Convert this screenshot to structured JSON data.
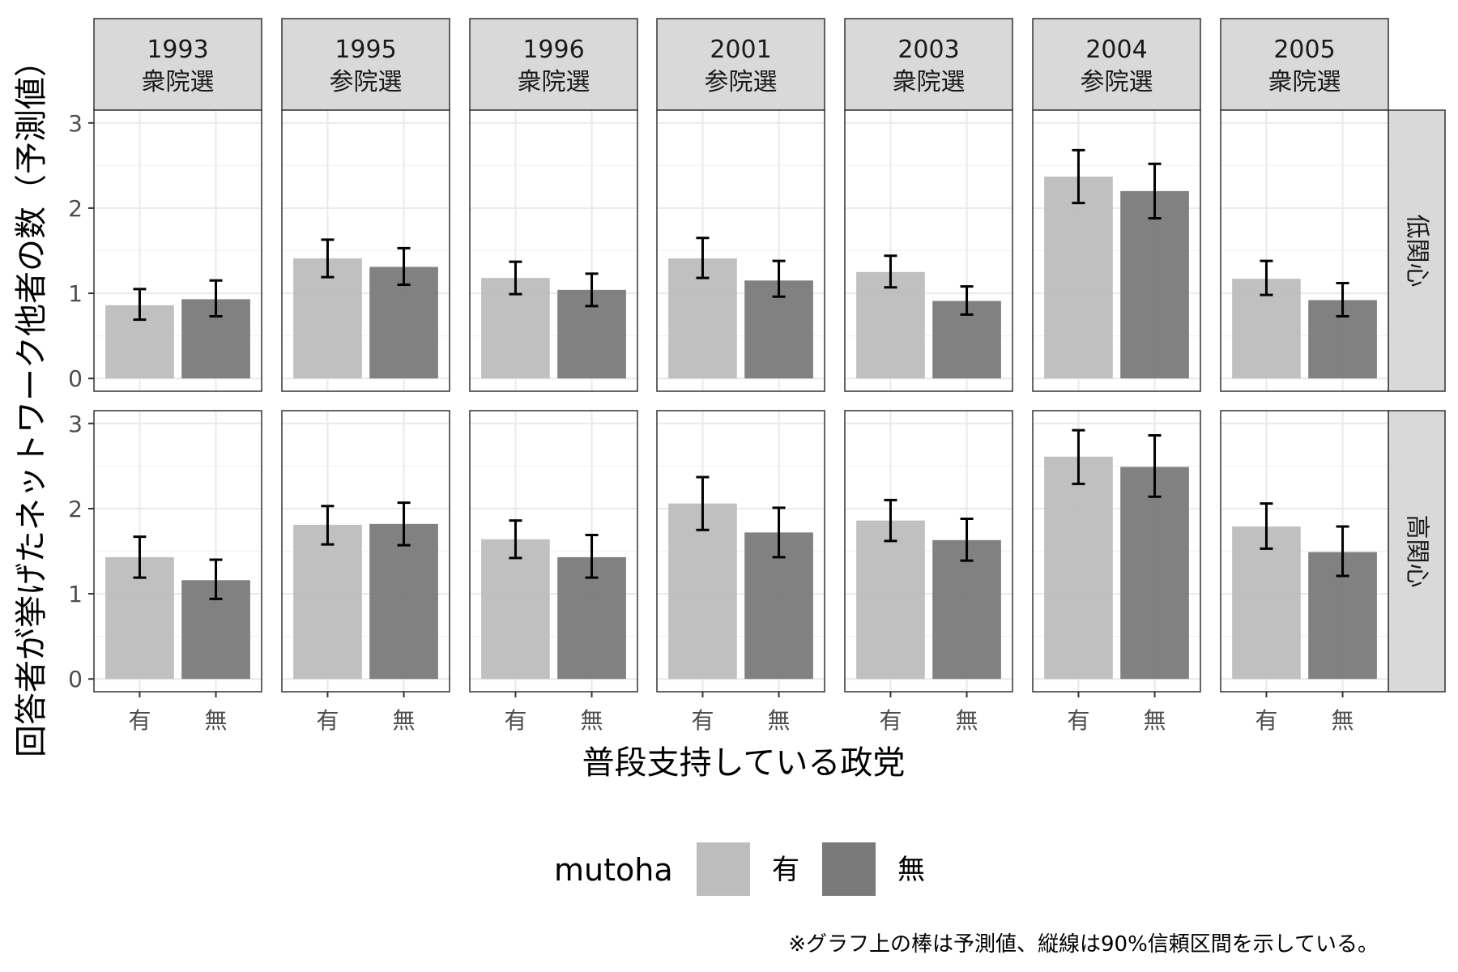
{
  "chart_data": {
    "type": "bar",
    "facets": {
      "columns": [
        {
          "year": "1993",
          "election": "衆院選"
        },
        {
          "year": "1995",
          "election": "参院選"
        },
        {
          "year": "1996",
          "election": "衆院選"
        },
        {
          "year": "2001",
          "election": "参院選"
        },
        {
          "year": "2003",
          "election": "衆院選"
        },
        {
          "year": "2004",
          "election": "参院選"
        },
        {
          "year": "2005",
          "election": "衆院選"
        }
      ],
      "rows": [
        "低関心",
        "高関心"
      ]
    },
    "categories": [
      "有",
      "無"
    ],
    "xlabel": "普段支持している政党",
    "ylabel": "回答者が挙げたネットワーク他者の数（予測値）",
    "ylim": [
      0,
      3
    ],
    "yticks": [
      0,
      1,
      2,
      3
    ],
    "grid": true,
    "legend": {
      "title": "mutoha",
      "position": "bottom",
      "items": [
        {
          "label": "有",
          "color": "#bdbdbd"
        },
        {
          "label": "無",
          "color": "#7a7a7a"
        }
      ]
    },
    "note": "※グラフ上の棒は予測値、縦線は90%信頼区間を示している。",
    "panels": [
      {
        "row": 0,
        "col": 0,
        "values": [
          0.86,
          0.93
        ],
        "lower": [
          0.69,
          0.73
        ],
        "upper": [
          1.05,
          1.15
        ]
      },
      {
        "row": 0,
        "col": 1,
        "values": [
          1.41,
          1.31
        ],
        "lower": [
          1.19,
          1.1
        ],
        "upper": [
          1.63,
          1.53
        ]
      },
      {
        "row": 0,
        "col": 2,
        "values": [
          1.18,
          1.04
        ],
        "lower": [
          0.99,
          0.85
        ],
        "upper": [
          1.37,
          1.23
        ]
      },
      {
        "row": 0,
        "col": 3,
        "values": [
          1.41,
          1.15
        ],
        "lower": [
          1.18,
          0.96
        ],
        "upper": [
          1.65,
          1.38
        ]
      },
      {
        "row": 0,
        "col": 4,
        "values": [
          1.25,
          0.91
        ],
        "lower": [
          1.07,
          0.75
        ],
        "upper": [
          1.44,
          1.08
        ]
      },
      {
        "row": 0,
        "col": 5,
        "values": [
          2.37,
          2.2
        ],
        "lower": [
          2.06,
          1.88
        ],
        "upper": [
          2.68,
          2.52
        ]
      },
      {
        "row": 0,
        "col": 6,
        "values": [
          1.17,
          0.92
        ],
        "lower": [
          0.98,
          0.73
        ],
        "upper": [
          1.38,
          1.12
        ]
      },
      {
        "row": 1,
        "col": 0,
        "values": [
          1.43,
          1.16
        ],
        "lower": [
          1.19,
          0.94
        ],
        "upper": [
          1.67,
          1.4
        ]
      },
      {
        "row": 1,
        "col": 1,
        "values": [
          1.81,
          1.82
        ],
        "lower": [
          1.58,
          1.57
        ],
        "upper": [
          2.03,
          2.07
        ]
      },
      {
        "row": 1,
        "col": 2,
        "values": [
          1.64,
          1.43
        ],
        "lower": [
          1.42,
          1.19
        ],
        "upper": [
          1.86,
          1.69
        ]
      },
      {
        "row": 1,
        "col": 3,
        "values": [
          2.06,
          1.72
        ],
        "lower": [
          1.75,
          1.43
        ],
        "upper": [
          2.37,
          2.01
        ]
      },
      {
        "row": 1,
        "col": 4,
        "values": [
          1.86,
          1.63
        ],
        "lower": [
          1.62,
          1.39
        ],
        "upper": [
          2.1,
          1.88
        ]
      },
      {
        "row": 1,
        "col": 5,
        "values": [
          2.61,
          2.49
        ],
        "lower": [
          2.29,
          2.14
        ],
        "upper": [
          2.92,
          2.86
        ]
      },
      {
        "row": 1,
        "col": 6,
        "values": [
          1.79,
          1.49
        ],
        "lower": [
          1.53,
          1.21
        ],
        "upper": [
          2.06,
          1.79
        ]
      }
    ]
  }
}
